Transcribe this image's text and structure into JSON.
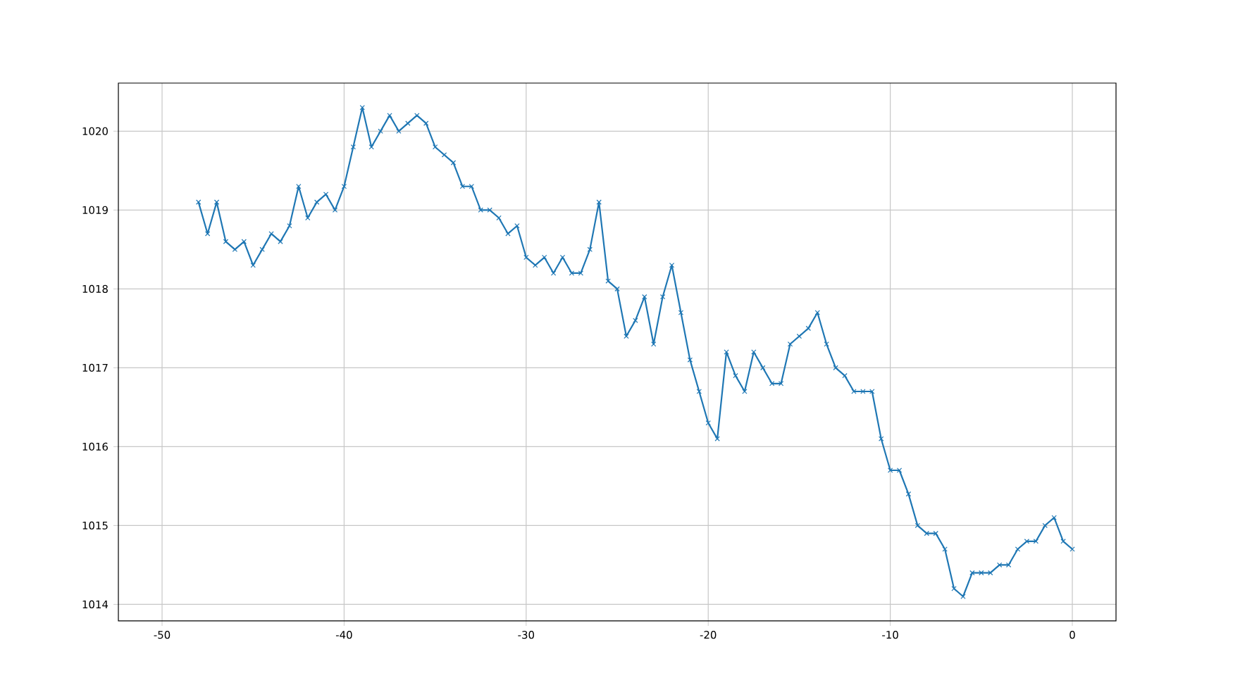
{
  "chart_data": {
    "type": "line",
    "x": [
      -48,
      -47.5,
      -47,
      -46.5,
      -46,
      -45.5,
      -45,
      -44.5,
      -44,
      -43.5,
      -43,
      -42.5,
      -42,
      -41.5,
      -41,
      -40.5,
      -40,
      -39.5,
      -39,
      -38.5,
      -38,
      -37.5,
      -37,
      -36.5,
      -36,
      -35.5,
      -35,
      -34.5,
      -34,
      -33.5,
      -33,
      -32.5,
      -32,
      -31.5,
      -31,
      -30.5,
      -30,
      -29.5,
      -29,
      -28.5,
      -28,
      -27.5,
      -27,
      -26.5,
      -26,
      -25.5,
      -25,
      -24.5,
      -24,
      -23.5,
      -23,
      -22.5,
      -22,
      -21.5,
      -21,
      -20.5,
      -20,
      -19.5,
      -19,
      -18.5,
      -18,
      -17.5,
      -17,
      -16.5,
      -16,
      -15.5,
      -15,
      -14.5,
      -14,
      -13.5,
      -13,
      -12.5,
      -12,
      -11.5,
      -11,
      -10.5,
      -10,
      -9.5,
      -9,
      -8.5,
      -8,
      -7.5,
      -7,
      -6.5,
      -6,
      -5.5,
      -5,
      -4.5,
      -4,
      -3.5,
      -3,
      -2.5,
      -2,
      -1.5,
      -1,
      -0.5,
      0
    ],
    "series": [
      {
        "color": "#1f77b4",
        "values": [
          1019.1,
          1018.7,
          1019.1,
          1018.6,
          1018.5,
          1018.6,
          1018.3,
          1018.5,
          1018.7,
          1018.6,
          1018.8,
          1019.3,
          1018.9,
          1019.1,
          1019.2,
          1019.0,
          1019.3,
          1019.8,
          1020.3,
          1019.8,
          1020.0,
          1020.2,
          1020.0,
          1020.1,
          1020.2,
          1020.1,
          1019.8,
          1019.7,
          1019.6,
          1019.3,
          1019.3,
          1019.0,
          1019.0,
          1018.9,
          1018.7,
          1018.8,
          1018.4,
          1018.3,
          1018.4,
          1018.2,
          1018.4,
          1018.2,
          1018.2,
          1018.5,
          1019.1,
          1018.1,
          1018.0,
          1017.4,
          1017.6,
          1017.9,
          1017.3,
          1017.9,
          1018.3,
          1017.7,
          1017.1,
          1016.7,
          1016.3,
          1016.1,
          1017.2,
          1016.9,
          1016.7,
          1017.2,
          1017.0,
          1016.8,
          1016.8,
          1017.3,
          1017.4,
          1017.5,
          1017.7,
          1017.3,
          1017.0,
          1016.9,
          1016.7,
          1016.7,
          1016.7,
          1016.1,
          1015.7,
          1015.7,
          1015.4,
          1015.0,
          1014.9,
          1014.9,
          1014.7,
          1014.2,
          1014.1,
          1014.4,
          1014.4,
          1014.4,
          1014.5,
          1014.5,
          1014.7,
          1014.8,
          1014.8,
          1015.0,
          1015.1,
          1014.8,
          1014.7
        ]
      }
    ],
    "xlim": [
      -52.4,
      2.4
    ],
    "ylim": [
      1013.79,
      1020.61
    ],
    "xticks": [
      -50,
      -40,
      -30,
      -20,
      -10,
      0
    ],
    "yticks": [
      1014,
      1015,
      1016,
      1017,
      1018,
      1019,
      1020
    ],
    "grid": true,
    "marker": "cross",
    "line_style": "solid"
  }
}
